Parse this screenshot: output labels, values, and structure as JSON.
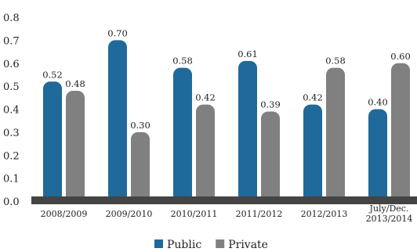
{
  "chart_data": {
    "type": "bar",
    "categories": [
      "2008/2009",
      "2009/2010",
      "2010/2011",
      "2011/2012",
      "2012/2013",
      "July/Dec.\n2013/2014"
    ],
    "series": [
      {
        "name": "Public",
        "values": [
          0.52,
          0.7,
          0.58,
          0.61,
          0.42,
          0.4
        ],
        "color": "#1f6a9a"
      },
      {
        "name": "Private",
        "values": [
          0.48,
          0.3,
          0.42,
          0.39,
          0.58,
          0.6
        ],
        "color": "#808080"
      }
    ],
    "value_labels": {
      "Public": [
        "0.52",
        "0.70",
        "0.58",
        "0.61",
        "0.42",
        "0.40"
      ],
      "Private": [
        "0.48",
        "0.30",
        "0.42",
        "0.39",
        "0.58",
        "0.60"
      ]
    },
    "yticks": [
      "0.0",
      "0.1",
      "0.2",
      "0.3",
      "0.4",
      "0.5",
      "0.6",
      "0.7",
      "0.8"
    ],
    "ylim": [
      0,
      0.8
    ],
    "title": "",
    "xlabel": "",
    "ylabel": "",
    "legend_position": "bottom-center",
    "grid": false,
    "baseline_color": "#444444"
  }
}
